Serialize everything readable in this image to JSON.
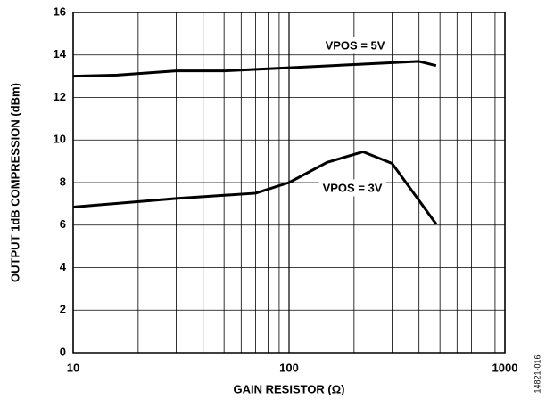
{
  "chart_data": {
    "type": "line",
    "xlabel": "GAIN RESISTOR (Ω)",
    "ylabel": "OUTPUT 1dB COMPRESSION (dBm)",
    "figure_id": "14821-016",
    "xscale": "log",
    "xlim": [
      10,
      1000
    ],
    "xticks": [
      10,
      100,
      1000
    ],
    "ylim": [
      0,
      16
    ],
    "yticks": [
      0,
      2,
      4,
      6,
      8,
      10,
      12,
      14,
      16
    ],
    "grid": true,
    "series": [
      {
        "name": "VPOS = 5V",
        "color": "#000000",
        "x": [
          10,
          16,
          30,
          50,
          100,
          200,
          400,
          480
        ],
        "values": [
          13.0,
          13.05,
          13.25,
          13.25,
          13.4,
          13.55,
          13.7,
          13.5
        ]
      },
      {
        "name": "VPOS = 3V",
        "color": "#000000",
        "x": [
          10,
          30,
          70,
          100,
          150,
          220,
          300,
          480
        ],
        "values": [
          6.85,
          7.25,
          7.5,
          8.0,
          8.95,
          9.45,
          8.9,
          6.05
        ]
      }
    ]
  }
}
